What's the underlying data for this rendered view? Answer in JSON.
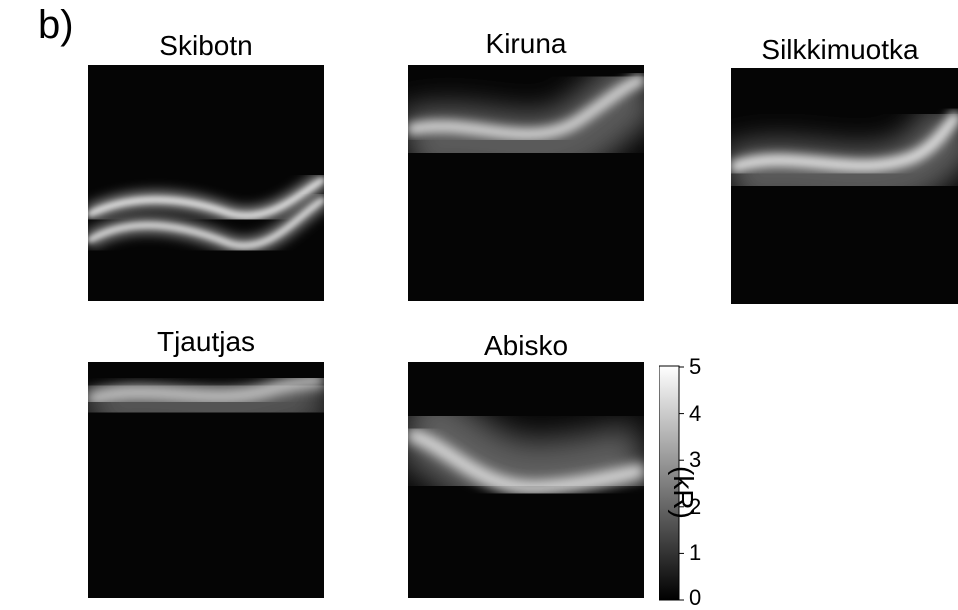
{
  "figure": {
    "panel_label": "b)",
    "panels": [
      {
        "title": "Skibotn"
      },
      {
        "title": "Kiruna"
      },
      {
        "title": "Silkkimuotka"
      },
      {
        "title": "Tjautjas"
      },
      {
        "title": "Abisko"
      }
    ],
    "colorbar": {
      "unit": "(kR)",
      "min": 0,
      "max": 5,
      "ticks": [
        "5",
        "4",
        "3",
        "2",
        "1",
        "0"
      ],
      "colormap": "grayscale"
    }
  }
}
